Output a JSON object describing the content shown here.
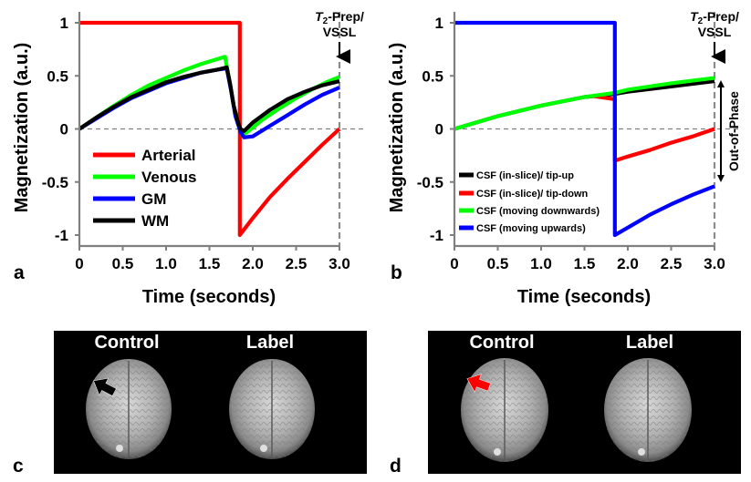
{
  "chart_data": [
    {
      "panel": "a",
      "type": "line",
      "xlabel": "Time (seconds)",
      "ylabel": "Magnetization (a.u.)",
      "xlim": [
        0,
        3.0
      ],
      "ylim": [
        -1,
        1
      ],
      "x_ticks": [
        "0",
        "0.5",
        "1.0",
        "1.5",
        "2.0",
        "2.5",
        "3.0"
      ],
      "y_ticks": [
        "1",
        "0.5",
        "0",
        "-0.5",
        "-1"
      ],
      "annotation": {
        "italic": "T",
        "sub": "2",
        "rest": "-Prep/",
        "line2": "VSSL",
        "x": 3.0
      },
      "legend": [
        "Arterial",
        "Venous",
        "GM",
        "WM"
      ],
      "series": [
        {
          "name": "Arterial",
          "color": "#ff0000",
          "points": [
            [
              0,
              1
            ],
            [
              1.85,
              1
            ],
            [
              1.85,
              -1
            ],
            [
              2.0,
              -0.84
            ],
            [
              2.2,
              -0.64
            ],
            [
              2.4,
              -0.47
            ],
            [
              2.6,
              -0.31
            ],
            [
              2.8,
              -0.15
            ],
            [
              3.0,
              0
            ]
          ]
        },
        {
          "name": "Venous",
          "color": "#00ff00",
          "points": [
            [
              0,
              0
            ],
            [
              0.2,
              0.11
            ],
            [
              0.4,
              0.22
            ],
            [
              0.6,
              0.32
            ],
            [
              0.8,
              0.41
            ],
            [
              1.0,
              0.48
            ],
            [
              1.2,
              0.55
            ],
            [
              1.4,
              0.61
            ],
            [
              1.6,
              0.66
            ],
            [
              1.68,
              0.68
            ],
            [
              1.73,
              0.46
            ],
            [
              1.78,
              0.22
            ],
            [
              1.83,
              0.06
            ],
            [
              1.88,
              -0.06
            ],
            [
              1.95,
              -0.02
            ],
            [
              2.1,
              0.08
            ],
            [
              2.3,
              0.19
            ],
            [
              2.5,
              0.29
            ],
            [
              2.7,
              0.38
            ],
            [
              2.85,
              0.44
            ],
            [
              3.0,
              0.49
            ]
          ]
        },
        {
          "name": "GM",
          "color": "#0000ff",
          "points": [
            [
              0,
              0
            ],
            [
              0.2,
              0.1
            ],
            [
              0.4,
              0.2
            ],
            [
              0.6,
              0.29
            ],
            [
              0.8,
              0.36
            ],
            [
              1.0,
              0.43
            ],
            [
              1.2,
              0.48
            ],
            [
              1.4,
              0.53
            ],
            [
              1.6,
              0.56
            ],
            [
              1.7,
              0.57
            ],
            [
              1.75,
              0.36
            ],
            [
              1.8,
              0.12
            ],
            [
              1.86,
              -0.03
            ],
            [
              1.9,
              -0.08
            ],
            [
              2.0,
              -0.07
            ],
            [
              2.2,
              0.03
            ],
            [
              2.4,
              0.13
            ],
            [
              2.6,
              0.23
            ],
            [
              2.8,
              0.32
            ],
            [
              3.0,
              0.39
            ]
          ]
        },
        {
          "name": "WM",
          "color": "#000000",
          "points": [
            [
              0,
              0
            ],
            [
              0.2,
              0.11
            ],
            [
              0.4,
              0.21
            ],
            [
              0.6,
              0.3
            ],
            [
              0.8,
              0.37
            ],
            [
              1.0,
              0.44
            ],
            [
              1.2,
              0.49
            ],
            [
              1.4,
              0.53
            ],
            [
              1.6,
              0.56
            ],
            [
              1.7,
              0.58
            ],
            [
              1.74,
              0.42
            ],
            [
              1.78,
              0.22
            ],
            [
              1.83,
              0.06
            ],
            [
              1.86,
              0.0
            ],
            [
              1.9,
              -0.02
            ],
            [
              2.0,
              0.06
            ],
            [
              2.2,
              0.18
            ],
            [
              2.4,
              0.28
            ],
            [
              2.6,
              0.35
            ],
            [
              2.8,
              0.41
            ],
            [
              3.0,
              0.45
            ]
          ]
        }
      ]
    },
    {
      "panel": "b",
      "type": "line",
      "xlabel": "Time (seconds)",
      "ylabel": "Magnetization (a.u.)",
      "xlim": [
        0,
        3.0
      ],
      "ylim": [
        -1,
        1
      ],
      "x_ticks": [
        "0",
        "0.5",
        "1.0",
        "1.5",
        "2.0",
        "2.5",
        "3.0"
      ],
      "y_ticks": [
        "1",
        "0.5",
        "0",
        "-0.5",
        "-1"
      ],
      "annotation": {
        "italic": "T",
        "sub": "2",
        "rest": "-Prep/",
        "line2": "VSSL",
        "x": 3.0
      },
      "side_label": "Out-of-Phase",
      "legend": [
        "CSF (in-slice)/ tip-up",
        "CSF (in-slice)/ tip-down",
        "CSF (moving downwards)",
        "CSF (moving upwards)"
      ],
      "series": [
        {
          "name": "CSF (in-slice)/ tip-up",
          "color": "#000000",
          "points": [
            [
              0,
              0
            ],
            [
              0.5,
              0.12
            ],
            [
              1.0,
              0.22
            ],
            [
              1.5,
              0.3
            ],
            [
              1.85,
              0.33
            ],
            [
              2.0,
              0.35
            ],
            [
              2.5,
              0.4
            ],
            [
              3.0,
              0.45
            ]
          ]
        },
        {
          "name": "CSF (in-slice)/ tip-down",
          "color": "#ff0000",
          "points": [
            [
              1.6,
              0.31
            ],
            [
              1.85,
              0.28
            ],
            [
              1.85,
              -0.3
            ],
            [
              2.0,
              -0.26
            ],
            [
              2.25,
              -0.2
            ],
            [
              2.5,
              -0.13
            ],
            [
              2.75,
              -0.07
            ],
            [
              3.0,
              0
            ]
          ]
        },
        {
          "name": "CSF (moving downwards)",
          "color": "#00ff00",
          "points": [
            [
              0,
              0
            ],
            [
              0.5,
              0.12
            ],
            [
              1.0,
              0.22
            ],
            [
              1.5,
              0.3
            ],
            [
              1.85,
              0.34
            ],
            [
              2.0,
              0.37
            ],
            [
              2.5,
              0.43
            ],
            [
              3.0,
              0.48
            ]
          ]
        },
        {
          "name": "CSF (moving upwards)",
          "color": "#0000ff",
          "points": [
            [
              0,
              1
            ],
            [
              1.85,
              1
            ],
            [
              1.85,
              -1
            ],
            [
              2.0,
              -0.93
            ],
            [
              2.25,
              -0.81
            ],
            [
              2.5,
              -0.71
            ],
            [
              2.75,
              -0.62
            ],
            [
              3.0,
              -0.54
            ]
          ]
        }
      ]
    }
  ],
  "panels": {
    "a": "a",
    "b": "b",
    "c": "c",
    "d": "d"
  },
  "images": {
    "c": {
      "left_label": "Control",
      "right_label": "Label",
      "arrow_color": "#000000"
    },
    "d": {
      "left_label": "Control",
      "right_label": "Label",
      "arrow_color": "#ff0000"
    }
  }
}
